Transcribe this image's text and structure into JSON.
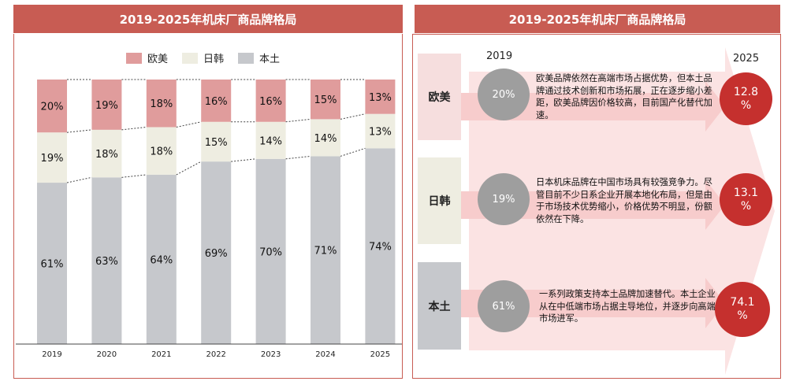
{
  "left_panel": {
    "title": "2019-2025年机床厂商品牌格局"
  },
  "right_panel": {
    "title": "2019-2025年机床厂商品牌格局",
    "year_start": "2019",
    "year_end": "2025",
    "rows": [
      {
        "label": "欧美",
        "start_value": "20%",
        "end_value": "12.8\n%",
        "end_value_display": "12.8 %",
        "description": "欧美品牌依然在高端市场占据优势，但本土品牌通过技术创新和市场拓展，正在逐步缩小差距，欧美品牌因价格较高，目前国产化替代加速。"
      },
      {
        "label": "日韩",
        "start_value": "19%",
        "end_value": "13.1\n%",
        "end_value_display": "13.1 %",
        "description": "日本机床品牌在中国市场具有较强竞争力。尽管目前不少日系企业开展本地化布局，但是由于市场技术优势缩小，价格优势不明显，份额依然在下降。"
      },
      {
        "label": "本土",
        "start_value": "61%",
        "end_value": "74.1\n%",
        "end_value_display": "74.1 %",
        "description": "一系列政策支持本土品牌加速替代。本土企业从在中低端市场占据主导地位，并逐步向高端市场进军。"
      }
    ]
  },
  "colors": {
    "accent": "#c85c53",
    "europe": "#e09c9c",
    "japan_korea": "#eeede1",
    "domestic": "#c6c8cc",
    "circle_gray": "#9e9e9e",
    "circle_red": "#c5302e"
  },
  "chart_data": {
    "type": "bar",
    "stacked": true,
    "categories": [
      "2019",
      "2020",
      "2021",
      "2022",
      "2023",
      "2024",
      "2025"
    ],
    "series": [
      {
        "name": "本土",
        "values": [
          61,
          63,
          64,
          69,
          70,
          71,
          74
        ],
        "labels": [
          "61%",
          "63%",
          "64%",
          "69%",
          "70%",
          "71%",
          "74%"
        ],
        "color": "#c6c8cc"
      },
      {
        "name": "日韩",
        "values": [
          19,
          18,
          18,
          15,
          14,
          14,
          13
        ],
        "labels": [
          "19%",
          "18%",
          "18%",
          "15%",
          "14%",
          "14%",
          "13%"
        ],
        "color": "#eeede1"
      },
      {
        "name": "欧美",
        "values": [
          20,
          19,
          18,
          16,
          16,
          15,
          13
        ],
        "labels": [
          "20%",
          "19%",
          "18%",
          "16%",
          "16%",
          "15%",
          "13%"
        ],
        "color": "#e09c9c"
      }
    ],
    "legend": [
      "欧美",
      "日韩",
      "本土"
    ],
    "legend_position": "top",
    "ylim": [
      0,
      100
    ]
  }
}
